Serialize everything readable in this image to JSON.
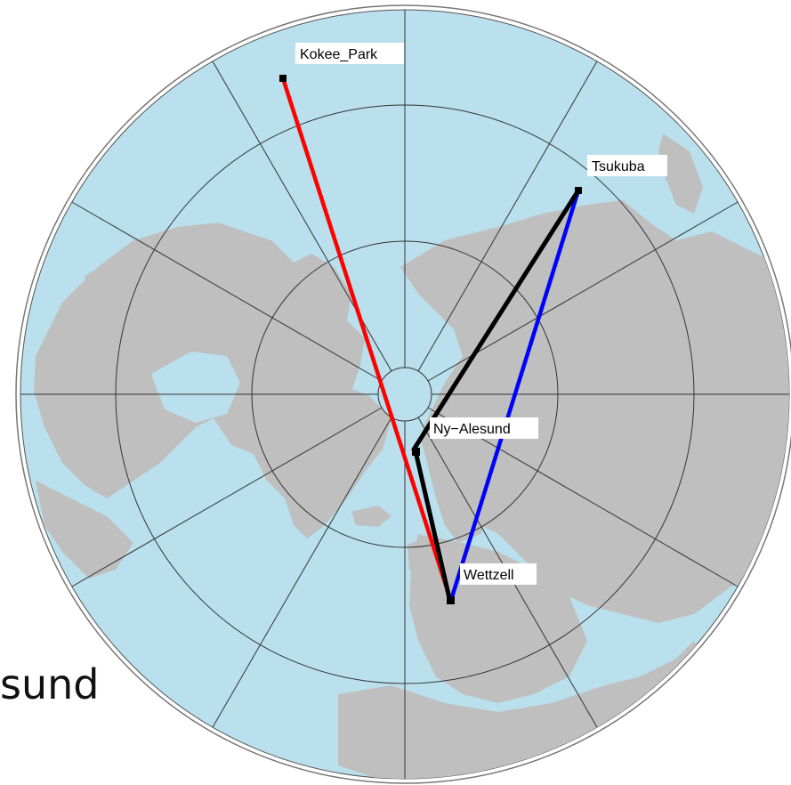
{
  "map": {
    "projection": "north-polar-stereographic",
    "colors": {
      "ocean": "#b9e0ec",
      "land": "#bfbfbf",
      "grid": "#333333",
      "border": "#555555"
    }
  },
  "stations": [
    {
      "id": "kokee",
      "name": "Kokee_Park"
    },
    {
      "id": "tsukuba",
      "name": "Tsukuba"
    },
    {
      "id": "nyalesund",
      "name": "Ny−Alesund"
    },
    {
      "id": "wettzell",
      "name": "Wettzell"
    }
  ],
  "baselines": [
    {
      "from": "Kokee_Park",
      "to": "Wettzell",
      "color": "#ff0000"
    },
    {
      "from": "Wettzell",
      "to": "Tsukuba",
      "color": "#0000ff"
    },
    {
      "from": "Tsukuba",
      "to": "Ny−Alesund",
      "color": "#000000"
    },
    {
      "from": "Ny−Alesund",
      "to": "Wettzell",
      "color": "#000000"
    }
  ],
  "slide": {
    "partial_text": "sund"
  }
}
